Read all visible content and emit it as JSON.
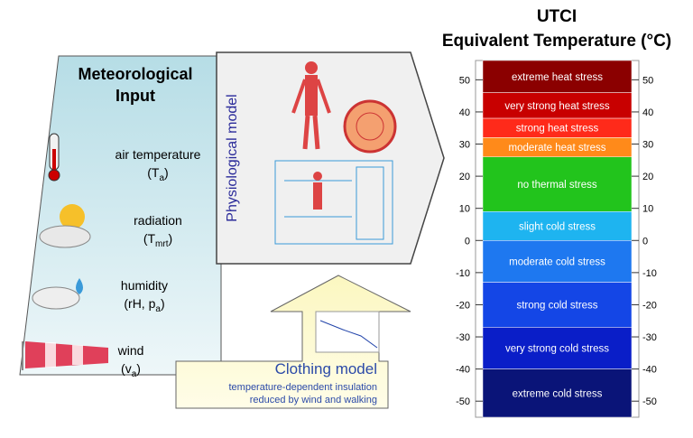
{
  "title": [
    "UTCI",
    "Equivalent Temperature (°C)"
  ],
  "meteorological_input": {
    "title": [
      "Meteorological",
      "Input"
    ],
    "items": [
      {
        "name": "air temperature",
        "symbol_parts": [
          "(T",
          "a",
          ")"
        ]
      },
      {
        "name": "radiation",
        "symbol_parts": [
          "(T",
          "mrt",
          ")"
        ]
      },
      {
        "name": "humidity",
        "symbol_parts": [
          "(rH, p",
          "a",
          ")"
        ]
      },
      {
        "name": "wind",
        "symbol_parts": [
          "(v",
          "a",
          ")"
        ]
      }
    ]
  },
  "physiological_model": {
    "label": "Physiological model"
  },
  "clothing_model": {
    "title": "Clothing model",
    "lines": [
      "temperature-dependent insulation",
      "reduced by wind and walking"
    ]
  },
  "scale": {
    "ylim": [
      -55,
      56
    ],
    "ticks": [
      50,
      40,
      30,
      20,
      10,
      0,
      -10,
      -20,
      -30,
      -40,
      -50
    ],
    "bands": [
      {
        "label": "extreme heat stress",
        "from": 46,
        "to": 56,
        "color": "#8b0000"
      },
      {
        "label": "very strong heat stress",
        "from": 38,
        "to": 46,
        "color": "#c80000"
      },
      {
        "label": "strong heat stress",
        "from": 32,
        "to": 38,
        "color": "#ff2a1a"
      },
      {
        "label": "moderate heat stress",
        "from": 26,
        "to": 32,
        "color": "#ff8a1a"
      },
      {
        "label": "no thermal stress",
        "from": 9,
        "to": 26,
        "color": "#22c41c"
      },
      {
        "label": "slight cold stress",
        "from": 0,
        "to": 9,
        "color": "#1eb4f0"
      },
      {
        "label": "moderate cold stress",
        "from": -13,
        "to": 0,
        "color": "#1e78f0"
      },
      {
        "label": "strong cold stress",
        "from": -27,
        "to": -13,
        "color": "#1446e6"
      },
      {
        "label": "very strong cold stress",
        "from": -40,
        "to": -27,
        "color": "#0a1ec8"
      },
      {
        "label": "extreme cold stress",
        "from": -55,
        "to": -40,
        "color": "#0a1478"
      }
    ]
  }
}
